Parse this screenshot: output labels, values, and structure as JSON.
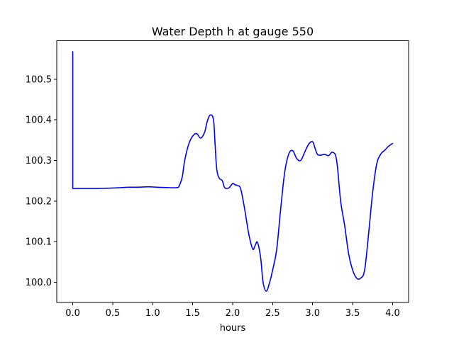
{
  "chart_data": {
    "type": "line",
    "title": "Water Depth h at gauge 550",
    "xlabel": "hours",
    "ylabel": "",
    "xlim": [
      -0.2,
      4.2
    ],
    "ylim": [
      99.95,
      100.595
    ],
    "xticks": [
      0.0,
      0.5,
      1.0,
      1.5,
      2.0,
      2.5,
      3.0,
      3.5,
      4.0
    ],
    "xtick_labels": [
      "0.0",
      "0.5",
      "1.0",
      "1.5",
      "2.0",
      "2.5",
      "3.0",
      "3.5",
      "4.0"
    ],
    "yticks": [
      100.0,
      100.1,
      100.2,
      100.3,
      100.4,
      100.5
    ],
    "ytick_labels": [
      "100.0",
      "100.1",
      "100.2",
      "100.3",
      "100.4",
      "100.5"
    ],
    "grid": false,
    "series": [
      {
        "color": "#0000ff",
        "x": [
          0.0,
          0.0,
          0.0,
          0.1,
          0.3,
          0.5,
          0.6,
          0.7,
          0.8,
          0.95,
          1.05,
          1.2,
          1.3,
          1.33,
          1.37,
          1.4,
          1.45,
          1.5,
          1.55,
          1.6,
          1.65,
          1.68,
          1.72,
          1.76,
          1.78,
          1.8,
          1.83,
          1.87,
          1.9,
          1.95,
          2.0,
          2.03,
          2.06,
          2.1,
          2.15,
          2.2,
          2.25,
          2.28,
          2.31,
          2.35,
          2.38,
          2.42,
          2.46,
          2.5,
          2.55,
          2.6,
          2.65,
          2.7,
          2.75,
          2.8,
          2.85,
          2.9,
          2.95,
          3.0,
          3.03,
          3.06,
          3.1,
          3.15,
          3.2,
          3.25,
          3.3,
          3.35,
          3.4,
          3.45,
          3.5,
          3.55,
          3.6,
          3.65,
          3.7,
          3.75,
          3.8,
          3.85,
          3.9,
          3.95,
          4.0
        ],
        "y": [
          100.568,
          100.232,
          100.231,
          100.231,
          100.231,
          100.232,
          100.233,
          100.234,
          100.234,
          100.235,
          100.234,
          100.233,
          100.233,
          100.237,
          100.26,
          100.3,
          100.34,
          100.36,
          100.366,
          100.355,
          100.37,
          100.395,
          100.412,
          100.4,
          100.34,
          100.28,
          100.257,
          100.25,
          100.233,
          100.232,
          100.243,
          100.24,
          100.238,
          100.23,
          100.18,
          100.12,
          100.082,
          100.09,
          100.098,
          100.06,
          100.0,
          99.978,
          99.998,
          100.03,
          100.08,
          100.18,
          100.27,
          100.315,
          100.324,
          100.305,
          100.3,
          100.32,
          100.34,
          100.346,
          100.33,
          100.315,
          100.313,
          100.315,
          100.312,
          100.32,
          100.3,
          100.2,
          100.14,
          100.07,
          100.03,
          100.01,
          100.01,
          100.03,
          100.12,
          100.22,
          100.29,
          100.315,
          100.325,
          100.335,
          100.342
        ]
      }
    ]
  }
}
